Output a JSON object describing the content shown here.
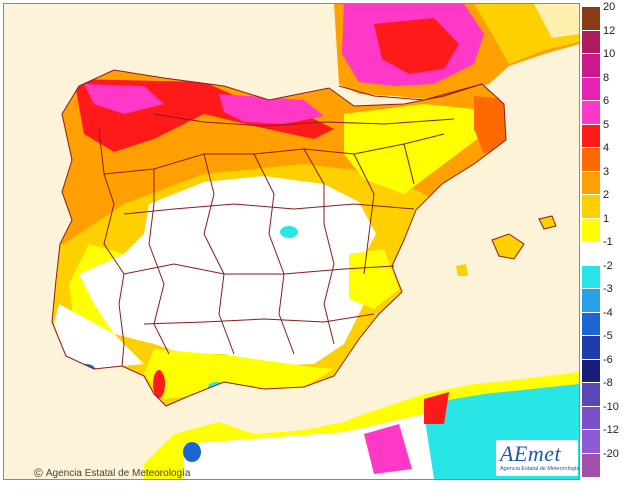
{
  "map": {
    "credit_text": "Agencia Estatal de Meteorología",
    "credit_icon": "copyright-icon",
    "logo_text": "AEmet",
    "logo_subtext": "Agencia Estatal de Meteorología",
    "colors": {
      "sea": "#fdf3d8",
      "land_default": "#ffffff",
      "border": "#8b1a1a"
    }
  },
  "legend": {
    "items": [
      {
        "label": "20",
        "color": "#8c3a14"
      },
      {
        "label": "12",
        "color": "#b01a5e"
      },
      {
        "label": "10",
        "color": "#c81a8c"
      },
      {
        "label": "8",
        "color": "#e622b4"
      },
      {
        "label": "6",
        "color": "#ff38c8"
      },
      {
        "label": "5",
        "color": "#ff1a1a"
      },
      {
        "label": "4",
        "color": "#ff6a00"
      },
      {
        "label": "3",
        "color": "#ffa000"
      },
      {
        "label": "2",
        "color": "#ffd000"
      },
      {
        "label": "1",
        "color": "#ffff00"
      },
      {
        "label": "-1",
        "color": "#ffffff"
      },
      {
        "label": "-2",
        "color": "#28e6e6"
      },
      {
        "label": "-3",
        "color": "#28a0e6"
      },
      {
        "label": "-4",
        "color": "#1e64d2"
      },
      {
        "label": "-5",
        "color": "#1e3caa"
      },
      {
        "label": "-6",
        "color": "#1a1e78"
      },
      {
        "label": "-8",
        "color": "#5a46b4"
      },
      {
        "label": "-10",
        "color": "#7850c8"
      },
      {
        "label": "-12",
        "color": "#8c5ad2"
      },
      {
        "label": "-20",
        "color": "#a050aa"
      }
    ]
  }
}
